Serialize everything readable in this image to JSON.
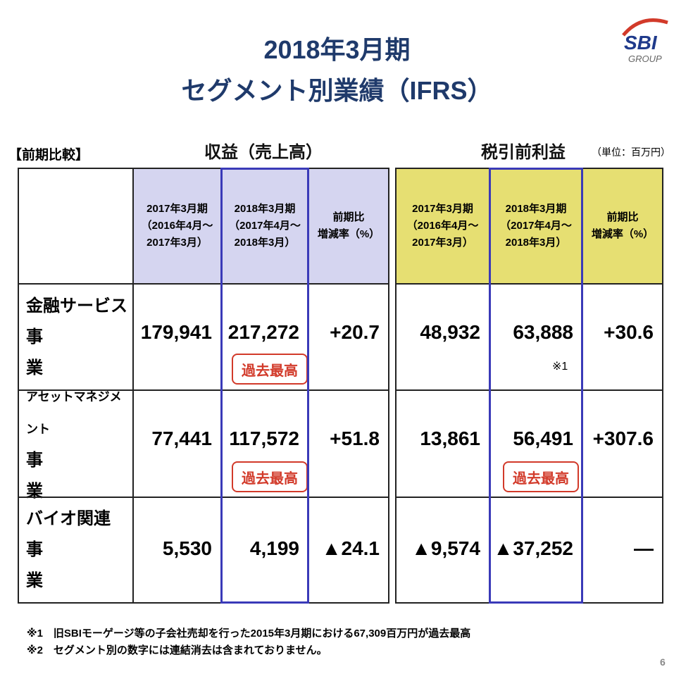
{
  "title": {
    "line1": "2018年3月期",
    "line2": "セグメント別業績（IFRS）"
  },
  "logo": {
    "text": "SBI",
    "sub": "GROUP"
  },
  "compare_label": "【前期比較】",
  "revenue_heading": "収益（売上高）",
  "profit_heading": "税引前利益",
  "unit": "（単位：百万円）",
  "headers": {
    "prev": [
      "2017年3月期",
      "（2016年4月～",
      "2017年3月）"
    ],
    "curr": [
      "2018年3月期",
      "（2017年4月～",
      "2018年3月）"
    ],
    "rate": [
      "前期比",
      "増減率（%）"
    ]
  },
  "rows": [
    {
      "label1": "金融サービス",
      "label2": "事　　　業",
      "rev_prev": "179,941",
      "rev_curr": "217,272",
      "rev_rate": "+20.7",
      "pt_prev": "48,932",
      "pt_curr": "63,888",
      "pt_rate": "+30.6",
      "note": "※1"
    },
    {
      "label1": "アセットマネジメント",
      "label2": "事　　　業",
      "rev_prev": "77,441",
      "rev_curr": "117,572",
      "rev_rate": "+51.8",
      "pt_prev": "13,861",
      "pt_curr": "56,491",
      "pt_rate": "+307.6"
    },
    {
      "label1": "バイオ関連",
      "label2": "事　　　業",
      "rev_prev": "5,530",
      "rev_curr": "4,199",
      "rev_rate": "▲24.1",
      "pt_prev": "▲9,574",
      "pt_curr": "▲37,252",
      "pt_rate": "—"
    }
  ],
  "badge": "過去最高",
  "footnotes": [
    "※1　旧SBIモーゲージ等の子会社売却を行った2015年3月期における67,309百万円が過去最高",
    "※2　セグメント別の数字には連結消去は含まれておりません。"
  ],
  "page_number": "6"
}
